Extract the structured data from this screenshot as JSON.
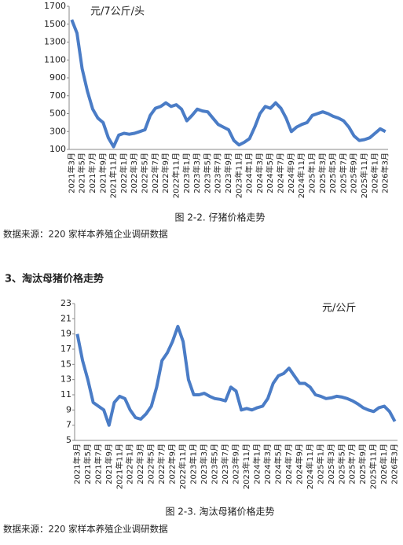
{
  "chart_data": [
    {
      "type": "line",
      "annotation": "元/7公斤/头",
      "caption": "图 2-2. 仔猪价格走势",
      "source": "数据来源：220 家样本养殖企业调研数据",
      "color": "#4a7cc6",
      "ylim": [
        100,
        1700
      ],
      "yticks": [
        100,
        300,
        500,
        700,
        900,
        1100,
        1300,
        1500,
        1700
      ],
      "categories": [
        "2021年3月",
        null,
        "2021年5月",
        null,
        "2021年7月",
        null,
        "2021年9月",
        null,
        "2021年11月",
        null,
        "2022年1月",
        null,
        "2022年3月",
        null,
        "2022年5月",
        null,
        "2022年7月",
        null,
        "2022年9月",
        null,
        "2022年11月",
        null,
        "2023年1月",
        null,
        "2023年3月",
        null,
        "2023年5月",
        null,
        "2023年7月",
        null,
        "2023年9月",
        null,
        "2023年11月",
        null,
        "2024年1月",
        null,
        "2024年3月",
        null,
        "2024年5月",
        null,
        "2024年7月",
        null,
        "2024年9月",
        null,
        "2024年11月",
        null,
        "2025年1月",
        null,
        "2025年3月",
        null,
        "2025年5月",
        null,
        "2025年7月",
        null,
        "2025年9月",
        null,
        "2025年11月",
        null,
        "2026年1月",
        null,
        "2026年3月"
      ],
      "values": [
        1550,
        1400,
        1000,
        750,
        550,
        450,
        400,
        230,
        130,
        260,
        280,
        270,
        280,
        300,
        320,
        480,
        560,
        580,
        620,
        580,
        600,
        550,
        420,
        480,
        550,
        530,
        520,
        450,
        380,
        350,
        320,
        200,
        150,
        180,
        220,
        350,
        500,
        580,
        560,
        620,
        560,
        450,
        300,
        350,
        380,
        400,
        480,
        500,
        520,
        500,
        470,
        450,
        420,
        350,
        250,
        200,
        210,
        230,
        280,
        330,
        300
      ]
    },
    {
      "type": "line",
      "annotation": "元/公斤",
      "caption": "图 2-3. 淘汰母猪价格走势",
      "source": "数据来源：220 家样本养殖企业调研数据",
      "color": "#4a7cc6",
      "ylim": [
        5,
        23
      ],
      "yticks": [
        5,
        7,
        9,
        11,
        13,
        15,
        17,
        19,
        21,
        23
      ],
      "categories": [
        "2021年3月",
        null,
        "2021年5月",
        null,
        "2021年7月",
        null,
        "2021年9月",
        null,
        "2021年11月",
        null,
        "2022年1月",
        null,
        "2022年3月",
        null,
        "2022年5月",
        null,
        "2022年7月",
        null,
        "2022年9月",
        null,
        "2022年11月",
        null,
        "2023年1月",
        null,
        "2023年3月",
        null,
        "2023年5月",
        null,
        "2023年7月",
        null,
        "2023年9月",
        null,
        "2023年11月",
        null,
        "2024年1月",
        null,
        "2024年3月",
        null,
        "2024年5月",
        null,
        "2024年7月",
        null,
        "2024年9月",
        null,
        "2024年11月",
        null,
        "2025年1月",
        null,
        "2025年3月",
        null,
        "2025年5月",
        null,
        "2025年7月",
        null,
        "2025年9月",
        null,
        "2025年11月",
        null,
        "2026年1月",
        null,
        "2026年3月"
      ],
      "values": [
        19,
        15.5,
        13,
        10,
        9.5,
        9,
        7,
        10,
        10.8,
        10.5,
        9,
        8,
        7.8,
        8.5,
        9.5,
        12,
        15.5,
        16.5,
        18,
        20,
        18,
        13,
        11,
        11,
        11.2,
        10.8,
        10.5,
        10.4,
        10.2,
        12,
        11.5,
        9,
        9.2,
        9,
        9.3,
        9.5,
        10.5,
        12.5,
        13.5,
        13.8,
        14.5,
        13.5,
        12.5,
        12.5,
        12,
        11,
        10.8,
        10.5,
        10.6,
        10.8,
        10.7,
        10.5,
        10.2,
        9.8,
        9.3,
        9,
        8.8,
        9.3,
        9.5,
        8.8,
        7.5
      ]
    }
  ],
  "heading": "3、淘汰母猪价格走势"
}
